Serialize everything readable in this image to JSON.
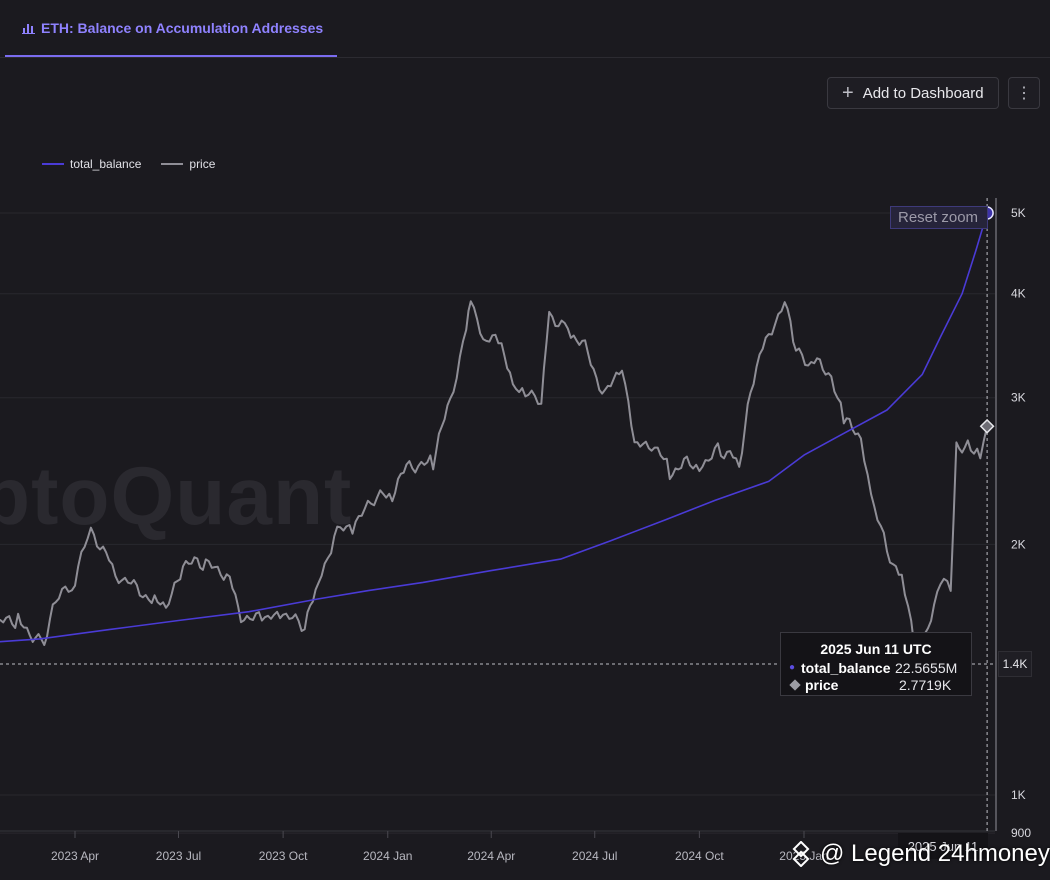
{
  "tab": {
    "title": "ETH: Balance on Accumulation Addresses",
    "icon": "bar-chart-icon"
  },
  "toolbar": {
    "add_label": "Add to Dashboard",
    "more_icon": "⋮"
  },
  "reset_zoom_label": "Reset zoom",
  "watermark": "ptoQuant",
  "credit": "@ Legend 24hmoney",
  "crosshair": {
    "y_label": "1.4K",
    "x_label": "2025 Jun 11"
  },
  "tooltip": {
    "date": "2025 Jun 11 UTC",
    "rows": [
      {
        "name": "total_balance",
        "value": "22.5655M"
      },
      {
        "name": "price",
        "value": "2.7719K"
      }
    ]
  },
  "chart_data": {
    "type": "line",
    "legend_position": "top-left",
    "grid": true,
    "x_ticks": [
      "2023 Apr",
      "2023 Jul",
      "2023 Oct",
      "2024 Jan",
      "2024 Apr",
      "2024 Jul",
      "2024 Oct",
      "2025 Jan"
    ],
    "y_ticks": [
      "5K",
      "4K",
      "3K",
      "2K",
      "1.4K",
      "1K",
      "900"
    ],
    "y_scale": "log",
    "ylim": [
      900,
      5200
    ],
    "series": [
      {
        "name": "total_balance",
        "color": "#4a3bd6",
        "points": [
          [
            "2023-01-01",
            1520
          ],
          [
            "2023-03-01",
            1540
          ],
          [
            "2023-05-01",
            1580
          ],
          [
            "2023-07-01",
            1620
          ],
          [
            "2023-09-01",
            1660
          ],
          [
            "2023-11-01",
            1720
          ],
          [
            "2023-12-15",
            1760
          ],
          [
            "2024-02-01",
            1800
          ],
          [
            "2024-04-01",
            1860
          ],
          [
            "2024-06-01",
            1920
          ],
          [
            "2024-07-15",
            2020
          ],
          [
            "2024-09-01",
            2140
          ],
          [
            "2024-10-15",
            2260
          ],
          [
            "2024-12-01",
            2380
          ],
          [
            "2025-01-01",
            2560
          ],
          [
            "2025-02-01",
            2700
          ],
          [
            "2025-03-15",
            2900
          ],
          [
            "2025-04-15",
            3200
          ],
          [
            "2025-05-01",
            3550
          ],
          [
            "2025-05-20",
            4000
          ],
          [
            "2025-06-01",
            4500
          ],
          [
            "2025-06-11",
            5000
          ]
        ]
      },
      {
        "name": "price",
        "color": "#8f8e96",
        "points": [
          [
            "2023-01-01",
            1550
          ],
          [
            "2023-01-20",
            1600
          ],
          [
            "2023-02-10",
            1620
          ],
          [
            "2023-03-05",
            1520
          ],
          [
            "2023-03-15",
            1700
          ],
          [
            "2023-04-01",
            1800
          ],
          [
            "2023-04-15",
            2100
          ],
          [
            "2023-05-01",
            1900
          ],
          [
            "2023-05-15",
            1800
          ],
          [
            "2023-06-10",
            1720
          ],
          [
            "2023-06-20",
            1650
          ],
          [
            "2023-07-05",
            1900
          ],
          [
            "2023-07-25",
            1880
          ],
          [
            "2023-08-15",
            1850
          ],
          [
            "2023-08-25",
            1650
          ],
          [
            "2023-09-15",
            1610
          ],
          [
            "2023-10-01",
            1650
          ],
          [
            "2023-10-20",
            1580
          ],
          [
            "2023-11-01",
            1800
          ],
          [
            "2023-11-15",
            2050
          ],
          [
            "2023-12-01",
            2100
          ],
          [
            "2023-12-20",
            2250
          ],
          [
            "2024-01-05",
            2300
          ],
          [
            "2024-01-20",
            2500
          ],
          [
            "2024-02-10",
            2500
          ],
          [
            "2024-02-25",
            3000
          ],
          [
            "2024-03-10",
            3600
          ],
          [
            "2024-03-14",
            4000
          ],
          [
            "2024-03-25",
            3500
          ],
          [
            "2024-04-10",
            3500
          ],
          [
            "2024-04-20",
            3100
          ],
          [
            "2024-05-01",
            3000
          ],
          [
            "2024-05-15",
            3000
          ],
          [
            "2024-05-22",
            3800
          ],
          [
            "2024-06-10",
            3600
          ],
          [
            "2024-06-25",
            3400
          ],
          [
            "2024-07-10",
            3000
          ],
          [
            "2024-07-25",
            3300
          ],
          [
            "2024-08-05",
            2600
          ],
          [
            "2024-08-20",
            2650
          ],
          [
            "2024-09-05",
            2450
          ],
          [
            "2024-09-20",
            2500
          ],
          [
            "2024-10-01",
            2500
          ],
          [
            "2024-10-20",
            2600
          ],
          [
            "2024-11-05",
            2500
          ],
          [
            "2024-11-15",
            3100
          ],
          [
            "2024-12-01",
            3600
          ],
          [
            "2024-12-15",
            3900
          ],
          [
            "2024-12-25",
            3400
          ],
          [
            "2025-01-10",
            3300
          ],
          [
            "2025-01-25",
            3200
          ],
          [
            "2025-02-05",
            2800
          ],
          [
            "2025-02-20",
            2700
          ],
          [
            "2025-03-01",
            2300
          ],
          [
            "2025-03-15",
            1950
          ],
          [
            "2025-03-28",
            1850
          ],
          [
            "2025-04-08",
            1500
          ],
          [
            "2025-04-20",
            1600
          ],
          [
            "2025-05-01",
            1820
          ],
          [
            "2025-05-10",
            1800
          ],
          [
            "2025-05-15",
            2600
          ],
          [
            "2025-05-25",
            2650
          ],
          [
            "2025-06-05",
            2600
          ],
          [
            "2025-06-11",
            2772
          ]
        ]
      }
    ]
  }
}
